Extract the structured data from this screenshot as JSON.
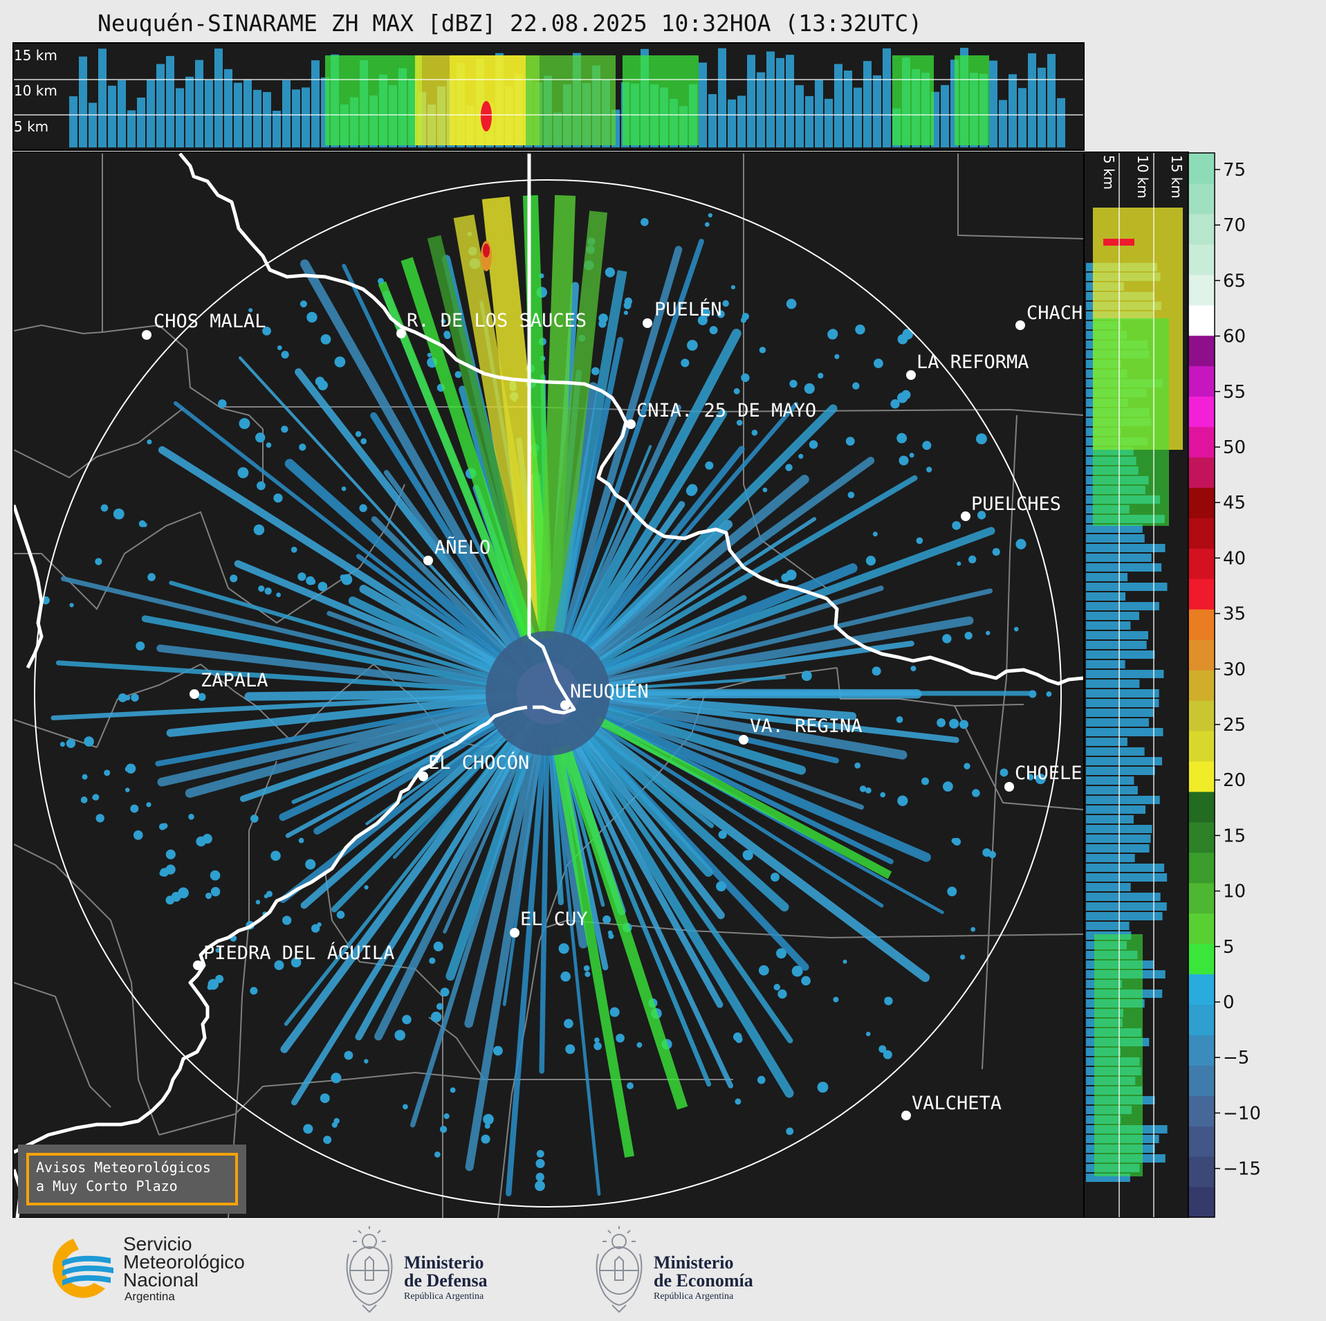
{
  "title": "Neuquén-SINARAME ZH MAX [dBZ] 22.08.2025 10:32HOA (13:32UTC)",
  "top_profile": {
    "height_labels": [
      "15 km",
      "10 km",
      "5 km"
    ]
  },
  "side_profile": {
    "height_labels": [
      "5 km",
      "10 km",
      "15 km"
    ]
  },
  "colorbar": {
    "ticks": [
      "75",
      "70",
      "65",
      "60",
      "55",
      "50",
      "45",
      "40",
      "35",
      "30",
      "25",
      "20",
      "15",
      "10",
      "5",
      "0",
      "−5",
      "−10",
      "−15"
    ],
    "stops": [
      "#343a6a",
      "#3c4878",
      "#435688",
      "#466898",
      "#3f7cab",
      "#3a8cbc",
      "#2f9fd0",
      "#29acdd",
      "#3ae63a",
      "#58d033",
      "#4eb731",
      "#3a9c2b",
      "#2e8127",
      "#226b21",
      "#f0ec2a",
      "#d8d82c",
      "#c9c632",
      "#d0ad2b",
      "#e0902a",
      "#ea7d22",
      "#ef1a2c",
      "#d31120",
      "#b00a12",
      "#960707",
      "#c2145a",
      "#e0139e",
      "#f221d8",
      "#c516c0",
      "#8e0e8c",
      "#ffffff",
      "#dff3e8",
      "#c9ecd9",
      "#b6e6cc",
      "#a0e0c0",
      "#8edcb7"
    ]
  },
  "cities": [
    {
      "name": "CHOS MALAL"
    },
    {
      "name": "R. DE LOS SAUCES"
    },
    {
      "name": "PUELÉN"
    },
    {
      "name": "CHACH"
    },
    {
      "name": "LA REFORMA"
    },
    {
      "name": "CNIA. 25 DE MAYO"
    },
    {
      "name": "PUELCHES"
    },
    {
      "name": "AÑELO"
    },
    {
      "name": "ZAPALA"
    },
    {
      "name": "NEUQUÉN"
    },
    {
      "name": "VA. REGINA"
    },
    {
      "name": "EL CHOCÓN"
    },
    {
      "name": "CHOELE"
    },
    {
      "name": "EL CUY"
    },
    {
      "name": "PIEDRA DEL ÁGUILA"
    },
    {
      "name": "VALCHETA"
    }
  ],
  "warning": {
    "line1": "Avisos Meteorológicos",
    "line2": "a Muy Corto Plazo"
  },
  "logos": {
    "smn": {
      "line1": "Servicio",
      "line2": "Meteorológico",
      "line3": "Nacional",
      "country": "Argentina"
    },
    "defensa": {
      "line1": "Ministerio",
      "line2": "de Defensa",
      "country": "República Argentina"
    },
    "economia": {
      "line1": "Ministerio",
      "line2": "de Economía",
      "country": "República Argentina"
    }
  }
}
